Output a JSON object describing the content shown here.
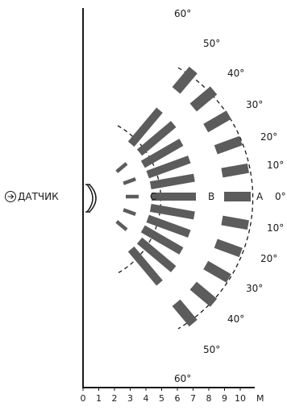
{
  "sensor": {
    "label": "ДАТЧИК",
    "icon": "arrow-circle-icon"
  },
  "distance_axis": {
    "unit": "M",
    "ticks": [
      "0",
      "1",
      "2",
      "3",
      "4",
      "5",
      "6",
      "7",
      "8",
      "9",
      "10"
    ]
  },
  "zones": [
    {
      "id": "C",
      "label": "C"
    },
    {
      "id": "B",
      "label": "B"
    },
    {
      "id": "A",
      "label": "A"
    }
  ],
  "angle_labels_upper": [
    "60°",
    "50°",
    "40°",
    "30°",
    "20°",
    "10°"
  ],
  "angle_center": "0°",
  "angle_labels_lower": [
    "10°",
    "20°",
    "30°",
    "40°",
    "50°",
    "60°"
  ],
  "beam_angles": [
    -50,
    -40,
    -30,
    -20,
    -10,
    0,
    10,
    20,
    30,
    40,
    50
  ],
  "beam_color": "#5c5c5c"
}
